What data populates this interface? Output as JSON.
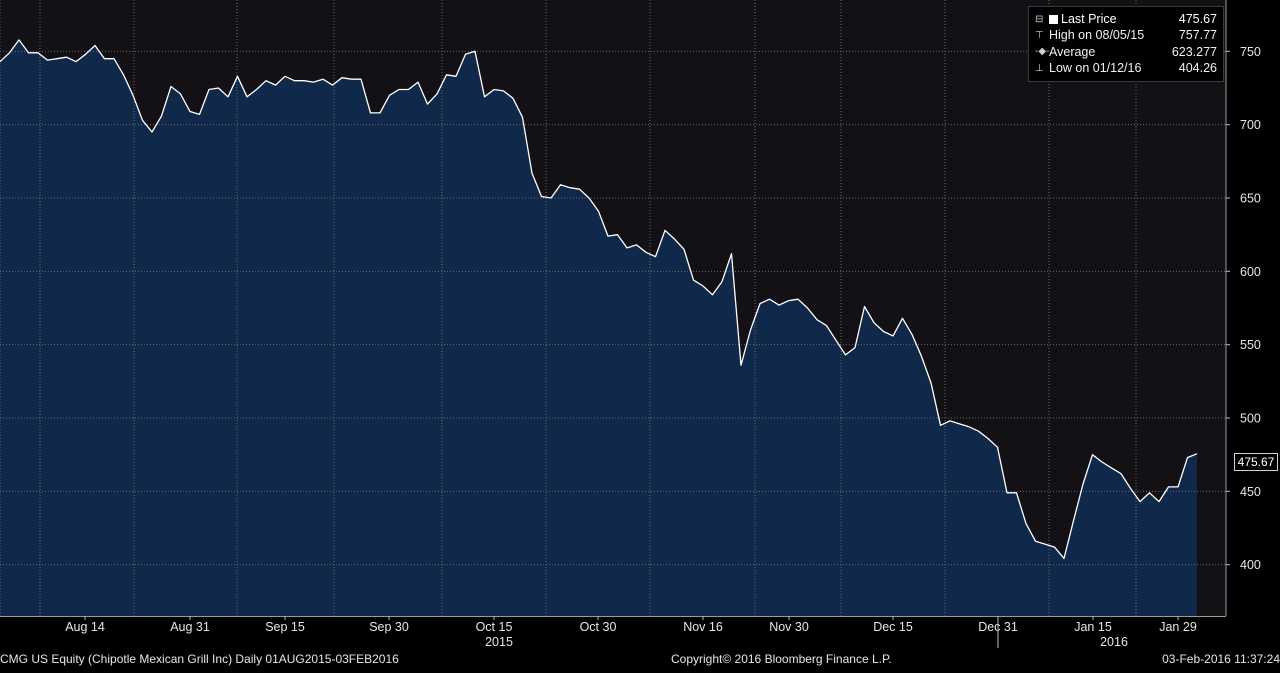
{
  "chart_data": {
    "type": "area",
    "ticker": "CMG US Equity (Chipotle Mexican Grill Inc)",
    "x_tick_labels": [
      "Aug 14",
      "Aug 31",
      "Sep 15",
      "Sep 30",
      "Oct 15",
      "Oct 30",
      "Nov 16",
      "Nov 30",
      "Dec 15",
      "Dec 31",
      "Jan 15",
      "Jan 29"
    ],
    "year_labels": [
      "2015",
      "2016"
    ],
    "y_ticks": [
      400,
      450,
      500,
      550,
      600,
      650,
      700,
      750
    ],
    "ylim": [
      365,
      785
    ],
    "grid": true,
    "y_axis_position": "right",
    "legend_position": "top-right",
    "series": [
      {
        "name": "Last Price",
        "values": [
          743,
          749,
          757.77,
          749,
          749,
          744,
          745,
          746,
          743,
          748,
          754,
          745,
          745,
          734,
          720,
          703,
          695,
          706,
          726,
          721,
          709,
          707,
          724,
          725,
          719,
          733,
          719,
          724,
          730,
          727,
          733,
          730,
          730,
          729,
          731,
          727,
          732,
          731,
          731,
          708,
          708,
          720,
          724,
          724,
          729,
          714,
          721,
          734,
          733,
          748,
          750,
          719,
          724,
          723,
          718,
          705,
          667,
          651,
          650,
          659,
          657,
          656,
          650,
          641,
          624,
          625,
          616,
          618,
          613,
          610,
          628,
          622,
          615,
          594,
          590,
          584,
          593,
          612,
          536,
          560,
          578,
          581,
          577,
          580,
          581,
          575,
          567,
          563,
          553,
          543,
          548,
          576,
          565,
          559,
          556,
          568,
          557,
          542,
          524,
          495,
          498,
          496,
          494,
          491,
          486,
          480,
          449,
          449,
          428,
          416,
          414,
          412,
          404.26,
          430,
          455,
          475,
          470,
          466,
          462,
          452,
          443,
          449,
          443,
          453,
          453,
          473,
          475.67
        ]
      }
    ],
    "legend": {
      "last_price_label": "Last Price",
      "last_price_value": "475.67",
      "high_label": "High on 08/05/15",
      "high_value": "757.77",
      "average_label": "Average",
      "average_value": "623.277",
      "low_label": "Low on 01/12/16",
      "low_value": "404.26"
    },
    "last_price_tag": "475.67",
    "colors": {
      "area_fill": "#10294a",
      "line": "#ffffff",
      "plot_background": "#131016",
      "grid": "#6a6a6a"
    }
  },
  "footer": {
    "left": "CMG US Equity (Chipotle Mexican Grill Inc)  Daily 01AUG2015-03FEB2016",
    "center": "Copyright© 2016 Bloomberg Finance L.P.",
    "right": "03-Feb-2016 11:37:24"
  }
}
